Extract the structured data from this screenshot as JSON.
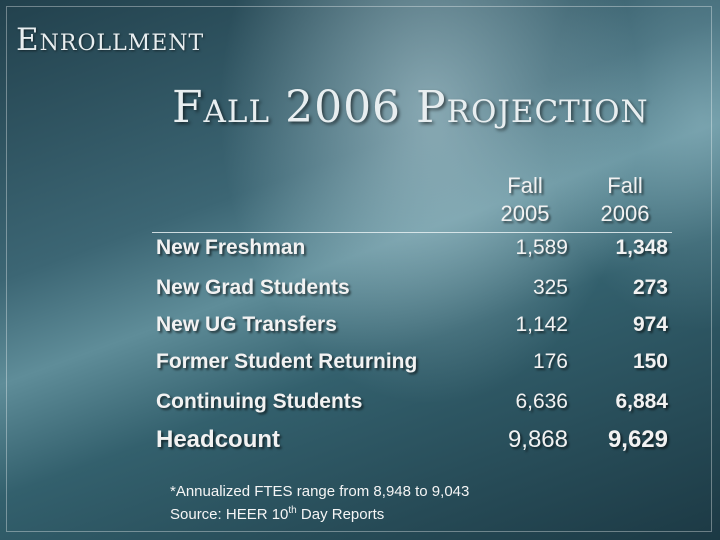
{
  "header": {
    "brand": "Enrollment",
    "title": "Fall 2006 Projection"
  },
  "columns": [
    {
      "line1": "Fall",
      "line2": "2005"
    },
    {
      "line1": "Fall",
      "line2": "2006"
    }
  ],
  "rows": [
    {
      "label": "New Freshman",
      "fall_2005": "1,589",
      "fall_2006": "1,348"
    },
    {
      "label": "New Grad Students",
      "fall_2005": "325",
      "fall_2006": "273"
    },
    {
      "label": "New UG Transfers",
      "fall_2005": "1,142",
      "fall_2006": "974"
    },
    {
      "label": "Former Student Returning",
      "fall_2005": "176",
      "fall_2006": "150"
    },
    {
      "label": "Continuing Students",
      "fall_2005": "6,636",
      "fall_2006": "6,884"
    }
  ],
  "total": {
    "label": "Headcount",
    "fall_2005": "9,868",
    "fall_2006": "9,629"
  },
  "footnote": {
    "line1": "*Annualized FTES range from 8,948 to 9,043",
    "line2_prefix": "Source:  HEER 10",
    "line2_sup": "th",
    "line2_suffix": " Day Reports"
  }
}
